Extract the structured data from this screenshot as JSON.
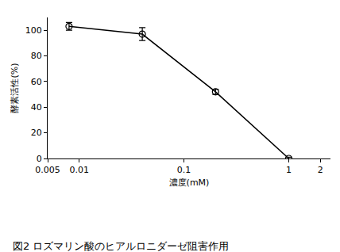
{
  "chart_data": {
    "type": "line",
    "title": "図2 ロズマリン酸のヒアルロニダーゼ阻害作用",
    "x_label": "濃度(mM)",
    "y_label": "酵素活性(%)",
    "x": [
      0.008,
      0.04,
      0.2,
      1
    ],
    "values": [
      103,
      97,
      52,
      0
    ],
    "errors": [
      3,
      5,
      2,
      1
    ],
    "color": "#000000",
    "marker": "open circle",
    "line_style": "solid",
    "log": "x",
    "xlim": [
      0.005,
      2.5
    ],
    "xticks": [
      0.005,
      0.01,
      0.1,
      1,
      2
    ],
    "ylim": [
      0,
      110
    ],
    "yticks": [
      0,
      20,
      40,
      60,
      80,
      100
    ],
    "grid": false
  }
}
